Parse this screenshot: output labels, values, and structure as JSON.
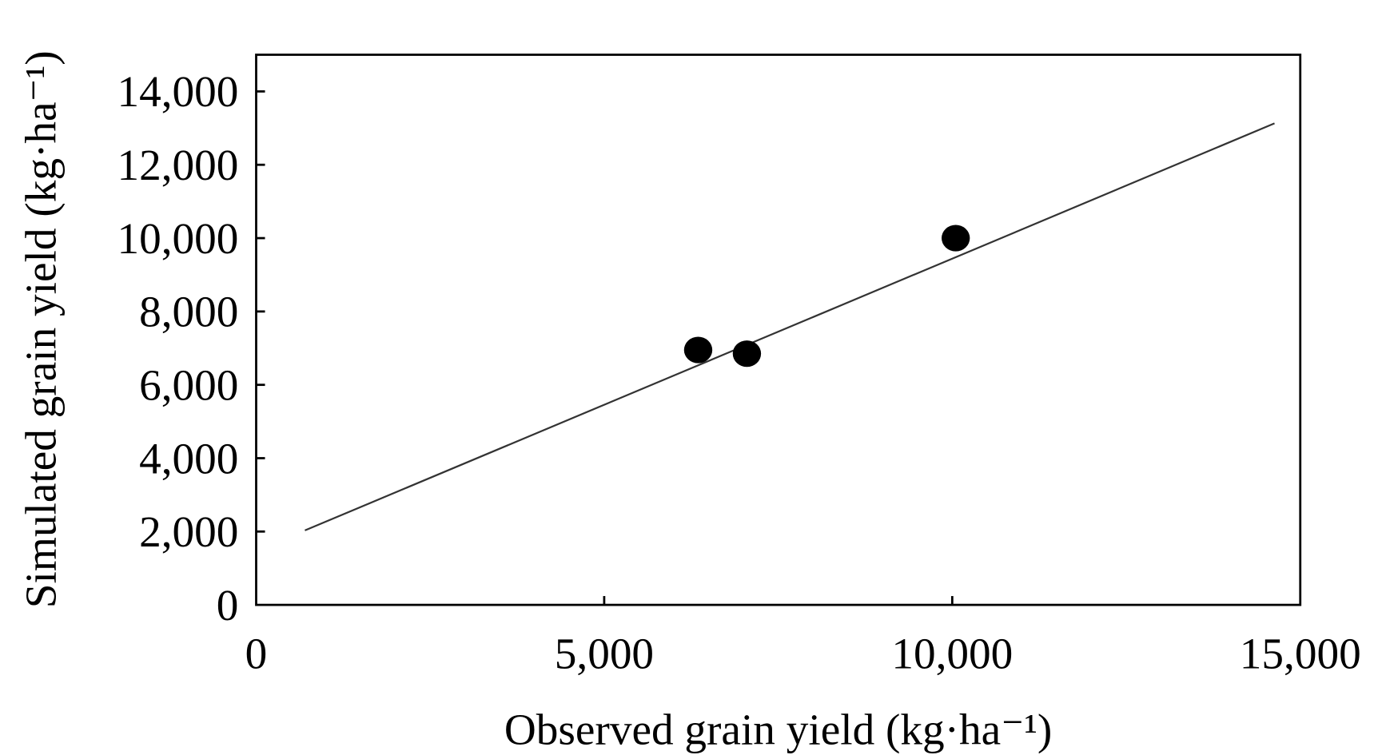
{
  "chart_data": {
    "type": "scatter",
    "title": "",
    "xlabel": "Observed grain yield (kg·ha⁻¹)",
    "ylabel": "Simulated grain yield (kg·ha⁻¹)",
    "xlim": [
      0,
      15000
    ],
    "ylim": [
      0,
      15000
    ],
    "xticks": [
      0,
      5000,
      10000,
      15000
    ],
    "xtick_labels": [
      "0",
      "5,000",
      "10,000",
      "15,000"
    ],
    "yticks": [
      0,
      2000,
      4000,
      6000,
      8000,
      10000,
      12000,
      14000
    ],
    "ytick_labels": [
      "0",
      "2,000",
      "4,000",
      "6,000",
      "8,000",
      "10,000",
      "12,000",
      "14,000"
    ],
    "grid": false,
    "points": [
      {
        "x": 6350,
        "y": 6950
      },
      {
        "x": 7050,
        "y": 6850
      },
      {
        "x": 10050,
        "y": 10000
      }
    ],
    "fit_line": {
      "x": [
        700,
        14630
      ],
      "y": [
        2030,
        13130
      ]
    },
    "colors": {
      "points": "#000000",
      "line": "#333333",
      "axes": "#000000"
    }
  }
}
